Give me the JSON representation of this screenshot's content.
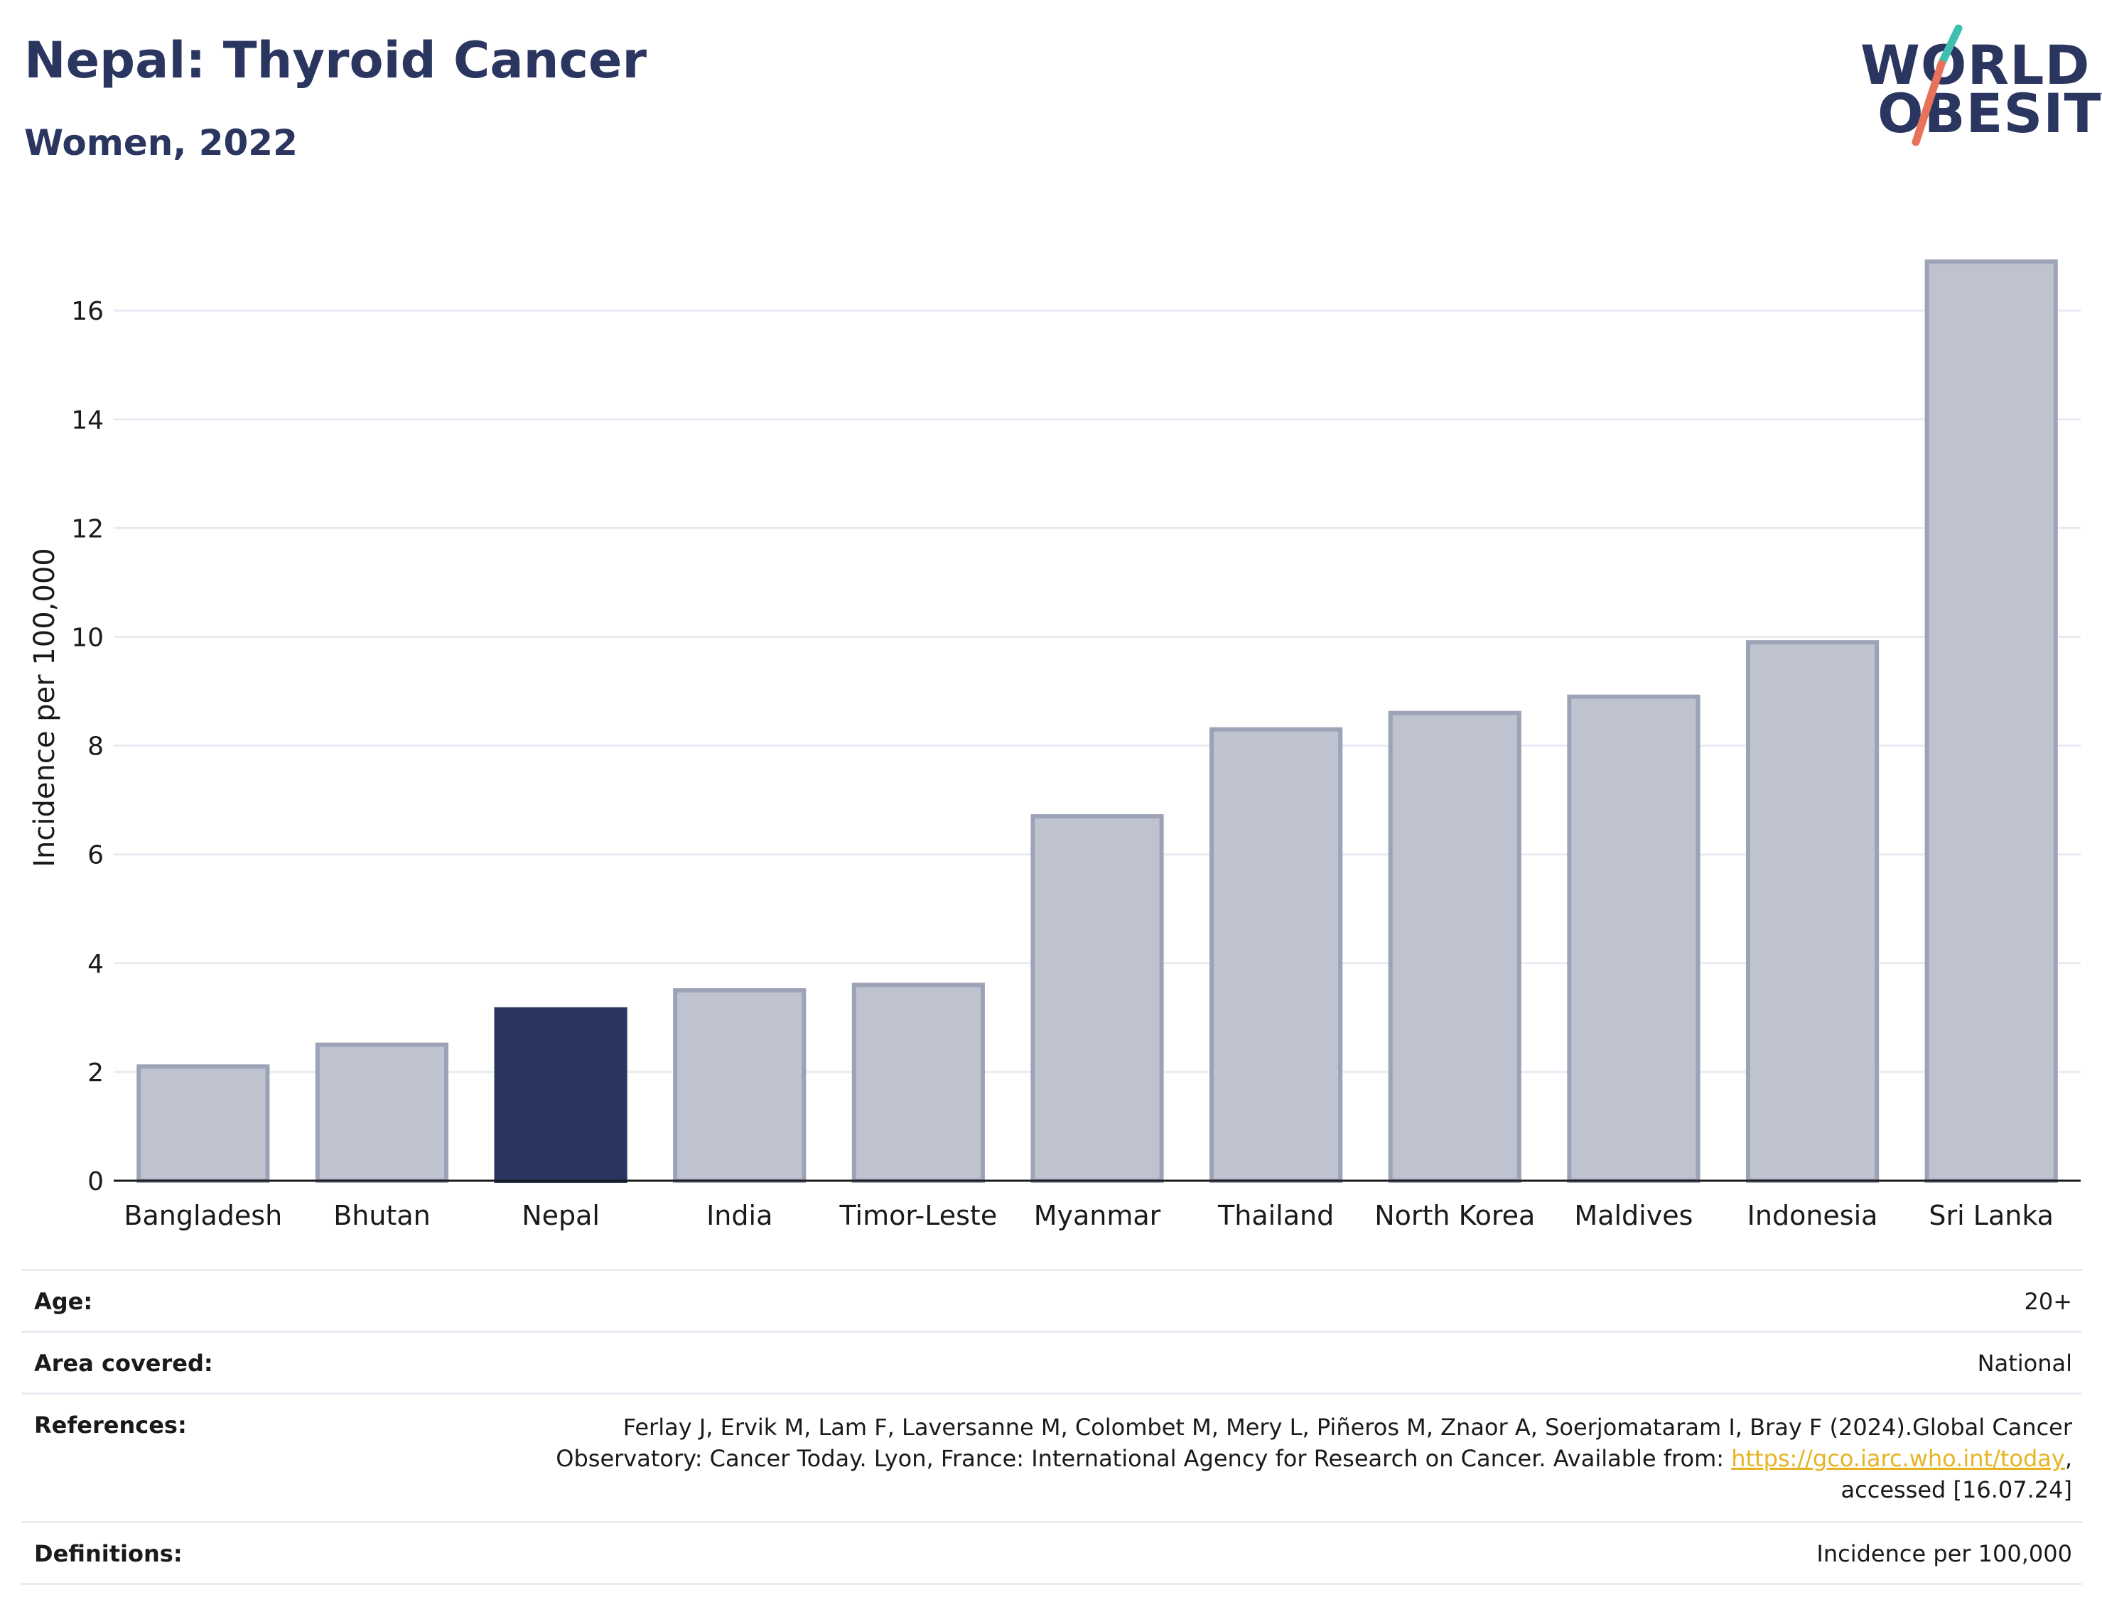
{
  "header": {
    "title": "Nepal: Thyroid Cancer",
    "subtitle": "Women, 2022"
  },
  "logo": {
    "line1": "WORLD",
    "line2": "OBESITY",
    "colors": {
      "text": "#2a3560",
      "slash_top": "#3fbfb0",
      "slash_bottom": "#e8735a"
    }
  },
  "colors": {
    "highlight": "#2a3560",
    "bar_fill": "#bfc3d0",
    "bar_stroke": "#9da3b7",
    "grid": "#e8ebf2",
    "link": "#e6b422"
  },
  "chart_data": {
    "type": "bar",
    "categories": [
      "Bangladesh",
      "Bhutan",
      "Nepal",
      "India",
      "Timor-Leste",
      "Myanmar",
      "Thailand",
      "North Korea",
      "Maldives",
      "Indonesia",
      "Sri Lanka"
    ],
    "values": [
      2.1,
      2.5,
      3.15,
      3.5,
      3.6,
      6.7,
      8.3,
      8.6,
      8.9,
      9.9,
      16.9
    ],
    "highlight": "Nepal",
    "title": "",
    "xlabel": "",
    "ylabel": "Incidence per 100,000",
    "ylim": [
      0,
      17.4
    ],
    "yticks": [
      0,
      2,
      4,
      6,
      8,
      10,
      12,
      14,
      16
    ],
    "grid": true,
    "legend": "none"
  },
  "info": {
    "age_label": "Age:",
    "age_value": "20+",
    "area_label": "Area covered:",
    "area_value": "National",
    "references_label": "References:",
    "references_text": "Ferlay J, Ervik M, Lam F, Laversanne M, Colombet M, Mery L, Piñeros M, Znaor A, Soerjomataram I, Bray F (2024).Global Cancer Observatory: Cancer Today. Lyon, France: International Agency for Research on Cancer. Available from:",
    "references_link": "https://gco.iarc.who.int/today",
    "references_after": ", accessed [16.07.24]",
    "definitions_label": "Definitions:",
    "definitions_value": "Incidence per 100,000"
  }
}
